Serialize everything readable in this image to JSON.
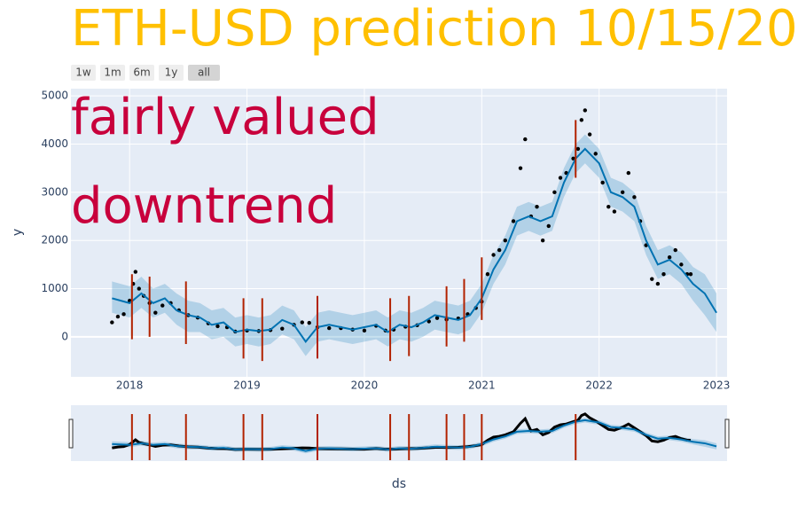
{
  "chart_data": {
    "type": "forecast",
    "title": "ETH-USD prediction 10/15/2022",
    "annotations": [
      "fairly valued",
      "downtrend"
    ],
    "range_buttons": [
      "1w",
      "1m",
      "6m",
      "1y",
      "all"
    ],
    "x_label": "ds",
    "y_label": "y",
    "xlim": [
      2017.5,
      2023.09
    ],
    "ylim": [
      -830,
      5150
    ],
    "xticks": [
      2018,
      2019,
      2020,
      2021,
      2022,
      2023
    ],
    "yticks": [
      0,
      1000,
      2000,
      3000,
      4000,
      5000
    ],
    "grid": true,
    "actual": {
      "color": "#000000",
      "x": [
        2017.85,
        2017.9,
        2017.95,
        2018.0,
        2018.03,
        2018.05,
        2018.08,
        2018.12,
        2018.17,
        2018.22,
        2018.28,
        2018.35,
        2018.42,
        2018.5,
        2018.58,
        2018.67,
        2018.75,
        2018.83,
        2018.9,
        2019.0,
        2019.1,
        2019.2,
        2019.3,
        2019.4,
        2019.47,
        2019.53,
        2019.6,
        2019.7,
        2019.8,
        2019.9,
        2020.0,
        2020.1,
        2020.18,
        2020.25,
        2020.35,
        2020.45,
        2020.55,
        2020.62,
        2020.7,
        2020.8,
        2020.88,
        2020.95,
        2021.0,
        2021.05,
        2021.1,
        2021.15,
        2021.2,
        2021.27,
        2021.33,
        2021.37,
        2021.42,
        2021.47,
        2021.52,
        2021.57,
        2021.62,
        2021.67,
        2021.72,
        2021.78,
        2021.82,
        2021.85,
        2021.88,
        2021.92,
        2021.97,
        2022.03,
        2022.08,
        2022.13,
        2022.2,
        2022.25,
        2022.3,
        2022.35,
        2022.4,
        2022.45,
        2022.5,
        2022.55,
        2022.6,
        2022.65,
        2022.7,
        2022.75,
        2022.78
      ],
      "y": [
        300,
        420,
        470,
        750,
        1100,
        1350,
        1000,
        850,
        700,
        500,
        650,
        700,
        550,
        450,
        400,
        280,
        220,
        200,
        110,
        130,
        120,
        140,
        170,
        250,
        300,
        290,
        200,
        180,
        180,
        150,
        130,
        230,
        130,
        150,
        210,
        240,
        320,
        390,
        360,
        380,
        470,
        600,
        730,
        1300,
        1700,
        1800,
        2000,
        2400,
        3500,
        4100,
        2500,
        2700,
        2000,
        2300,
        3000,
        3300,
        3400,
        3700,
        3900,
        4500,
        4700,
        4200,
        3800,
        3200,
        2700,
        2600,
        3000,
        3400,
        2900,
        2400,
        1900,
        1200,
        1100,
        1300,
        1650,
        1800,
        1500,
        1300,
        1300
      ]
    },
    "forecast": {
      "color": "#0072B2",
      "band_color": "rgba(0,114,178,0.22)",
      "x": [
        2017.85,
        2018.0,
        2018.1,
        2018.2,
        2018.3,
        2018.4,
        2018.5,
        2018.6,
        2018.7,
        2018.8,
        2018.9,
        2019.0,
        2019.1,
        2019.2,
        2019.3,
        2019.4,
        2019.5,
        2019.6,
        2019.7,
        2019.8,
        2019.9,
        2020.0,
        2020.1,
        2020.2,
        2020.3,
        2020.4,
        2020.5,
        2020.6,
        2020.7,
        2020.8,
        2020.9,
        2021.0,
        2021.1,
        2021.2,
        2021.3,
        2021.4,
        2021.5,
        2021.6,
        2021.7,
        2021.8,
        2021.88,
        2022.0,
        2022.1,
        2022.2,
        2022.3,
        2022.4,
        2022.5,
        2022.6,
        2022.7,
        2022.8,
        2022.9,
        2023.0
      ],
      "yhat": [
        800,
        700,
        900,
        700,
        800,
        550,
        450,
        400,
        250,
        300,
        100,
        150,
        120,
        150,
        350,
        250,
        -100,
        200,
        250,
        200,
        150,
        200,
        250,
        100,
        250,
        200,
        300,
        450,
        400,
        350,
        450,
        800,
        1400,
        1800,
        2400,
        2500,
        2400,
        2500,
        3200,
        3700,
        3900,
        3600,
        3000,
        2900,
        2700,
        2000,
        1500,
        1600,
        1400,
        1100,
        900,
        500
      ],
      "lower": [
        500,
        400,
        600,
        400,
        500,
        250,
        100,
        100,
        -50,
        0,
        -200,
        -150,
        -200,
        -150,
        50,
        -50,
        -400,
        -100,
        -50,
        -100,
        -150,
        -100,
        -50,
        -200,
        -50,
        -100,
        0,
        150,
        100,
        50,
        150,
        500,
        1100,
        1500,
        2100,
        2200,
        2100,
        2200,
        2900,
        3400,
        3600,
        3300,
        2700,
        2600,
        2400,
        1700,
        1200,
        1300,
        1100,
        750,
        450,
        100
      ],
      "upper": [
        1150,
        1050,
        1250,
        1000,
        1100,
        900,
        750,
        700,
        550,
        600,
        400,
        450,
        400,
        450,
        650,
        550,
        200,
        500,
        550,
        500,
        450,
        500,
        550,
        400,
        550,
        500,
        600,
        750,
        700,
        650,
        750,
        1100,
        1700,
        2100,
        2700,
        2800,
        2700,
        2800,
        3500,
        4000,
        4200,
        3900,
        3300,
        3200,
        3000,
        2300,
        1800,
        1900,
        1750,
        1450,
        1300,
        900
      ]
    },
    "changepoints": {
      "color": "#B22200",
      "x": [
        2018.02,
        2018.17,
        2018.48,
        2018.97,
        2019.13,
        2019.6,
        2020.22,
        2020.38,
        2020.7,
        2020.85,
        2021.0,
        2021.8
      ],
      "low": [
        -50,
        0,
        -150,
        -450,
        -500,
        -450,
        -500,
        -400,
        -200,
        -100,
        350,
        3300
      ],
      "high": [
        1300,
        1250,
        1150,
        800,
        800,
        850,
        800,
        850,
        1050,
        1200,
        1650,
        4500
      ]
    }
  }
}
